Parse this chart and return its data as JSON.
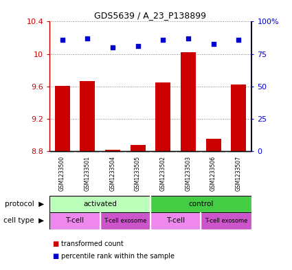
{
  "title": "GDS5639 / A_23_P138899",
  "samples": [
    "GSM1233500",
    "GSM1233501",
    "GSM1233504",
    "GSM1233505",
    "GSM1233502",
    "GSM1233503",
    "GSM1233506",
    "GSM1233507"
  ],
  "transformed_counts": [
    9.61,
    9.67,
    8.82,
    8.88,
    9.65,
    10.02,
    8.95,
    9.62
  ],
  "percentile_ranks": [
    86,
    87,
    80,
    81,
    86,
    87,
    83,
    86
  ],
  "ylim_left": [
    8.8,
    10.4
  ],
  "ylim_right": [
    0,
    100
  ],
  "yticks_left": [
    8.8,
    9.2,
    9.6,
    10.0,
    10.4
  ],
  "yticks_right": [
    0,
    25,
    50,
    75,
    100
  ],
  "ytick_labels_left": [
    "8.8",
    "9.2",
    "9.6",
    "10",
    "10.4"
  ],
  "ytick_labels_right": [
    "0",
    "25",
    "50",
    "75",
    "100%"
  ],
  "bar_color": "#cc0000",
  "scatter_color": "#0000cc",
  "bar_bottom": 8.8,
  "protocol_groups": [
    {
      "label": "activated",
      "start": 0,
      "end": 4,
      "color": "#bbffbb"
    },
    {
      "label": "control",
      "start": 4,
      "end": 8,
      "color": "#44cc44"
    }
  ],
  "cell_type_groups": [
    {
      "label": "T-cell",
      "start": 0,
      "end": 2,
      "color": "#ee88ee"
    },
    {
      "label": "T-cell exosome",
      "start": 2,
      "end": 4,
      "color": "#cc55cc"
    },
    {
      "label": "T-cell",
      "start": 4,
      "end": 6,
      "color": "#ee88ee"
    },
    {
      "label": "T-cell exosome",
      "start": 6,
      "end": 8,
      "color": "#cc55cc"
    }
  ],
  "legend_items": [
    {
      "label": "transformed count",
      "color": "#cc0000"
    },
    {
      "label": "percentile rank within the sample",
      "color": "#0000cc"
    }
  ],
  "xlabel_color": "#cc0000",
  "ylabel_right_color": "#0000cc",
  "header_row_color": "#cccccc",
  "left_label_protocol": "protocol",
  "left_label_celltype": "cell type",
  "arrow_char": "▶"
}
